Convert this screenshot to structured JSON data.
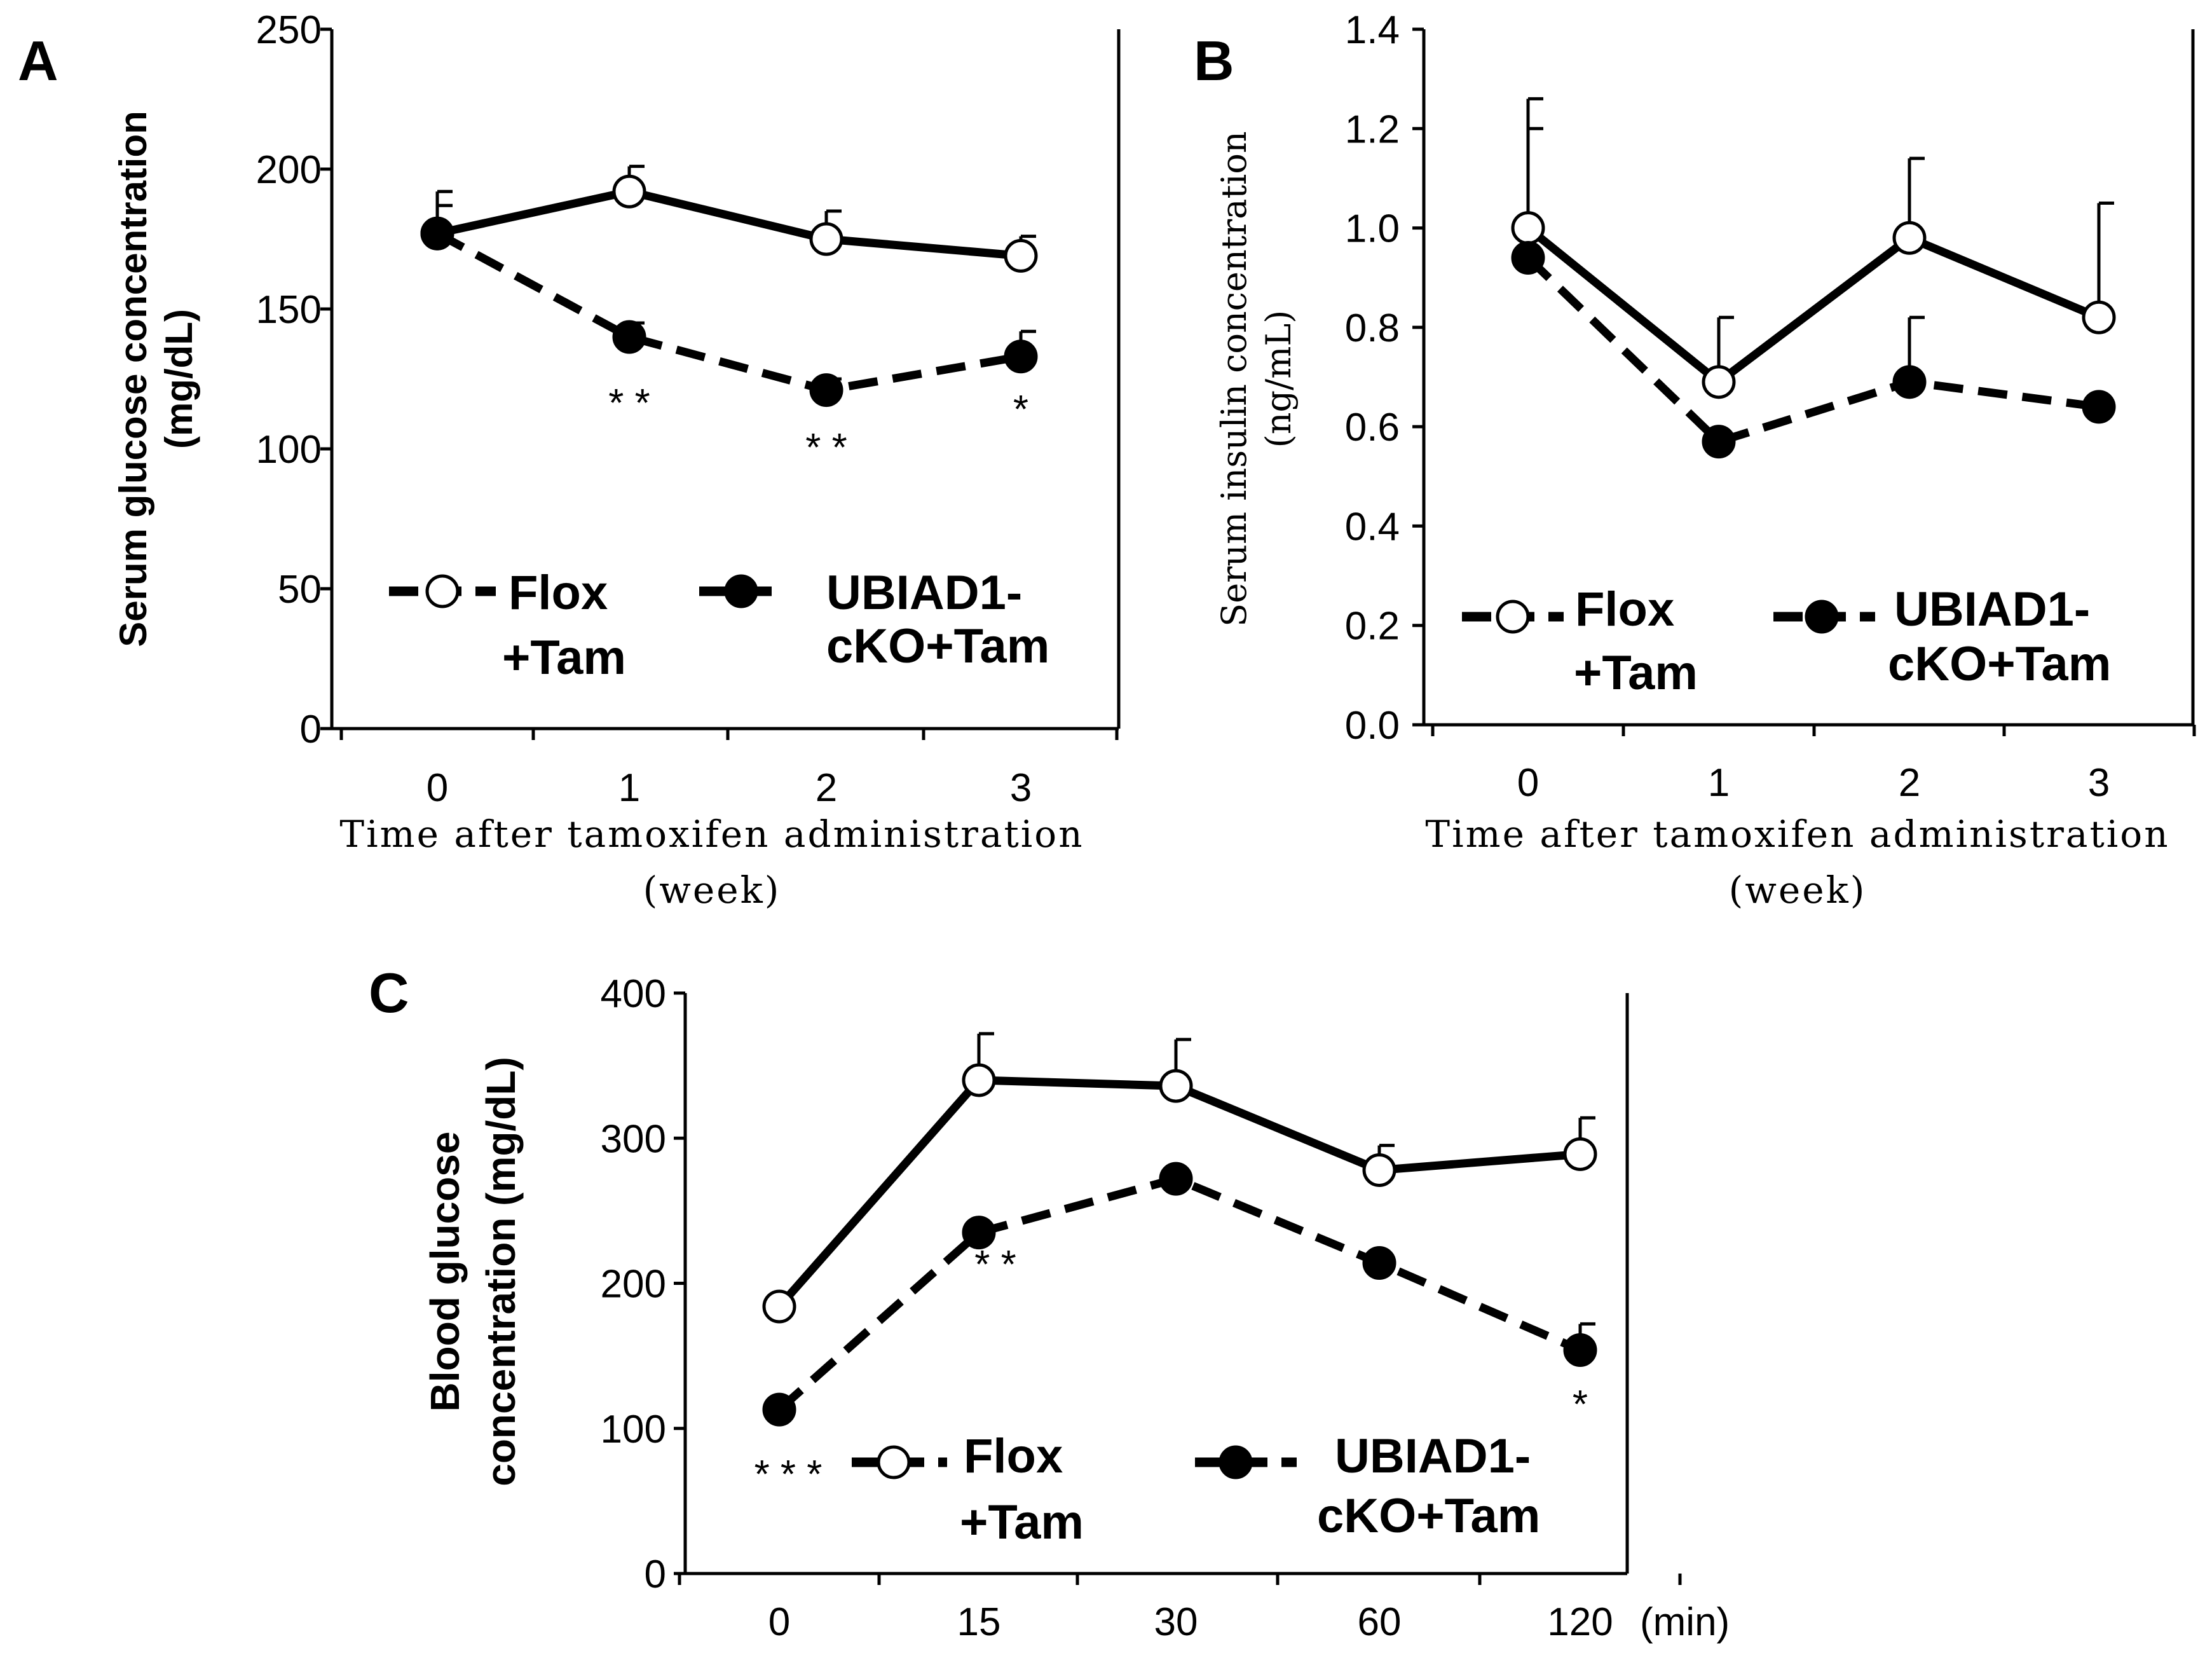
{
  "chart_data": [
    {
      "panel": "A",
      "type": "line",
      "ylabel": [
        "Serum glucose concentration",
        "(mg/dL)"
      ],
      "xlabel": [
        "Time after tamoxifen administration",
        "(week)"
      ],
      "categories": [
        "0",
        "1",
        "2",
        "3"
      ],
      "yticks": [
        "0",
        "50",
        "100",
        "150",
        "200",
        "250"
      ],
      "ylim": [
        0,
        250
      ],
      "series": [
        {
          "name": "Flox +Tam",
          "values": [
            177,
            192,
            175,
            169
          ],
          "err": [
            15,
            9,
            10,
            7
          ],
          "marker": "open-circle",
          "line": "solid"
        },
        {
          "name": "UBIAD1-cKO+Tam",
          "values": [
            177,
            140,
            121,
            133
          ],
          "err": [
            10,
            5,
            4,
            9
          ],
          "marker": "filled-circle",
          "line": "dashed"
        }
      ],
      "annotations": [
        {
          "category": "1",
          "text": "**"
        },
        {
          "category": "2",
          "text": "**"
        },
        {
          "category": "3",
          "text": "*"
        }
      ],
      "legend": {
        "series1": [
          "Flox",
          "+Tam"
        ],
        "series2": [
          "UBIAD1-",
          "cKO+Tam"
        ],
        "position": "bottom"
      }
    },
    {
      "panel": "B",
      "type": "line",
      "ylabel": [
        "Serum insulin concentration",
        "(ng/mL)"
      ],
      "xlabel": [
        "Time after tamoxifen administration",
        "(week)"
      ],
      "categories": [
        "0",
        "1",
        "2",
        "3"
      ],
      "yticks": [
        "0.0",
        "0.2",
        "0.4",
        "0.6",
        "0.8",
        "1.0",
        "1.2",
        "1.4"
      ],
      "ylim": [
        0,
        1.4
      ],
      "series": [
        {
          "name": "Flox +Tam",
          "values": [
            1.0,
            0.69,
            0.98,
            0.82
          ],
          "err": [
            0.26,
            0.13,
            0.16,
            0.23
          ],
          "marker": "open-circle",
          "line": "solid"
        },
        {
          "name": "UBIAD1-cKO+Tam",
          "values": [
            0.94,
            0.57,
            0.69,
            0.64
          ],
          "err": [
            0.26,
            0.0,
            0.13,
            0.0
          ],
          "marker": "filled-circle",
          "line": "dashed"
        }
      ],
      "legend": {
        "series1": [
          "Flox",
          "+Tam"
        ],
        "series2": [
          "UBIAD1-",
          "cKO+Tam"
        ],
        "position": "bottom"
      }
    },
    {
      "panel": "C",
      "type": "line",
      "ylabel": [
        "Blood glucose",
        "concentration (mg/dL)"
      ],
      "xunit": "(min)",
      "categories": [
        "0",
        "15",
        "30",
        "60",
        "120"
      ],
      "yticks": [
        "0",
        "100",
        "200",
        "300",
        "400"
      ],
      "ylim": [
        0,
        400
      ],
      "series": [
        {
          "name": "Flox +Tam",
          "values": [
            184,
            340,
            336,
            278,
            289
          ],
          "err": [
            0,
            32,
            32,
            17,
            25
          ],
          "marker": "open-circle",
          "line": "solid"
        },
        {
          "name": "UBIAD1-cKO+Tam",
          "values": [
            113,
            235,
            272,
            214,
            154
          ],
          "err": [
            0,
            0,
            0,
            0,
            18
          ],
          "marker": "filled-circle",
          "line": "dashed"
        }
      ],
      "annotations": [
        {
          "category": "0",
          "text": "***"
        },
        {
          "category": "15",
          "text": "**"
        },
        {
          "category": "120",
          "text": "*"
        }
      ],
      "legend": {
        "series1": [
          "Flox",
          "+Tam"
        ],
        "series2": [
          "UBIAD1-",
          "cKO+Tam"
        ],
        "position": "bottom"
      }
    }
  ]
}
